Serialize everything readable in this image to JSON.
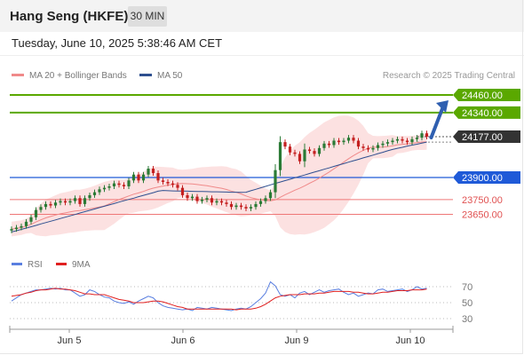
{
  "header": {
    "title": "Hang Seng (HKFE)",
    "timeframe": "30 MIN"
  },
  "datetime": "Tuesday, June 10, 2025 5:38:46 AM CET",
  "legend": {
    "ma20_label": "MA 20 + Bollinger Bands",
    "ma20_color": "#f08a8a",
    "ma50_label": "MA 50",
    "ma50_color": "#2e4f8f"
  },
  "copyright": "Research © 2025 Trading Central",
  "colors": {
    "green": "#5aa800",
    "blue": "#1f5ad8",
    "red": "#ef7777",
    "price_dark": "#333333",
    "arrow": "#2f5fb0",
    "up_candle": "#2a7a35",
    "down_candle": "#c42020"
  },
  "levels": {
    "resistance": [
      "24460.00",
      "24340.00"
    ],
    "last_price": "24177.00",
    "pivot": "23900.00",
    "support": [
      "23750.00",
      "23650.00"
    ]
  },
  "rsi_legend": {
    "rsi_label": "RSI",
    "rsi_color": "#5a7fe0",
    "ma_label": "9MA",
    "ma_color": "#e02020"
  },
  "rsi_ticks": [
    "70",
    "50",
    "30"
  ],
  "x_labels": [
    "Jun 5",
    "Jun 6",
    "Jun 9",
    "Jun 10"
  ],
  "chart_data": {
    "type": "candlestick",
    "instrument": "Hang Seng (HKFE)",
    "interval": "30 MIN",
    "x_labels": [
      "Jun 5",
      "Jun 6",
      "Jun 9",
      "Jun 10"
    ],
    "price_levels": [
      24460,
      24340,
      24177,
      23900,
      23750,
      23650
    ],
    "close": [
      23550,
      23560,
      23570,
      23600,
      23630,
      23680,
      23700,
      23720,
      23710,
      23730,
      23740,
      23730,
      23740,
      23760,
      23720,
      23760,
      23780,
      23800,
      23820,
      23830,
      23840,
      23860,
      23850,
      23840,
      23880,
      23920,
      23880,
      23920,
      23960,
      23930,
      23880,
      23870,
      23860,
      23850,
      23830,
      23780,
      23760,
      23770,
      23740,
      23750,
      23760,
      23730,
      23740,
      23730,
      23720,
      23700,
      23710,
      23700,
      23690,
      23700,
      23720,
      23740,
      23760,
      23800,
      23950,
      24140,
      24110,
      24070,
      24060,
      24010,
      24090,
      24080,
      24060,
      24100,
      24130,
      24120,
      24150,
      24140,
      24150,
      24170,
      24150,
      24110,
      24100,
      24090,
      24100,
      24120,
      24130,
      24140,
      24150,
      24160,
      24150,
      24140,
      24160,
      24170,
      24200,
      24177
    ],
    "ma50": [
      23530,
      23539,
      23548,
      23557,
      23566,
      23575,
      23585,
      23594,
      23603,
      23612,
      23622,
      23631,
      23640,
      23649,
      23659,
      23668,
      23677,
      23686,
      23696,
      23705,
      23714,
      23723,
      23733,
      23742,
      23751,
      23760,
      23770,
      23779,
      23788,
      23797,
      23807,
      23812,
      23810,
      23809,
      23808,
      23808,
      23807,
      23806,
      23805,
      23805,
      23804,
      23803,
      23803,
      23802,
      23801,
      23800,
      23800,
      23799,
      23800,
      23810,
      23820,
      23830,
      23840,
      23850,
      23860,
      23869,
      23879,
      23888,
      23898,
      23908,
      23917,
      23927,
      23937,
      23946,
      23956,
      23965,
      23975,
      23985,
      23994,
      24004,
      24014,
      24023,
      24033,
      24042,
      24052,
      24062,
      24071,
      24081,
      24090,
      24098,
      24105,
      24113,
      24120,
      24126,
      24133,
      24140
    ],
    "rsi": [
      52,
      56,
      60,
      62,
      64,
      66,
      66,
      67,
      68,
      67,
      68,
      66,
      66,
      62,
      58,
      60,
      66,
      64,
      60,
      57,
      56,
      52,
      50,
      49,
      51,
      48,
      52,
      55,
      58,
      56,
      50,
      46,
      44,
      43,
      42,
      41,
      42,
      40,
      44,
      43,
      42,
      44,
      43,
      42,
      41,
      40,
      42,
      43,
      42,
      45,
      50,
      55,
      62,
      76,
      71,
      60,
      58,
      60,
      56,
      62,
      64,
      60,
      63,
      66,
      63,
      65,
      66,
      67,
      63,
      60,
      62,
      58,
      60,
      62,
      61,
      66,
      67,
      64,
      65,
      66,
      67,
      64,
      66,
      70,
      67,
      68
    ],
    "rsi_ma9": [
      58,
      59,
      60,
      62,
      63,
      65,
      66,
      66,
      67,
      68,
      67,
      67,
      66,
      65,
      63,
      61,
      61,
      60,
      60,
      60,
      58,
      56,
      54,
      53,
      52,
      50,
      50,
      50,
      51,
      52,
      52,
      51,
      49,
      47,
      45,
      44,
      42,
      42,
      42,
      42,
      42,
      42,
      42,
      42,
      42,
      42,
      41,
      42,
      42,
      42,
      43,
      45,
      48,
      52,
      56,
      58,
      59,
      60,
      60,
      60,
      61,
      61,
      61,
      62,
      62,
      63,
      64,
      64,
      64,
      64,
      63,
      63,
      62,
      61,
      61,
      62,
      63,
      63,
      64,
      65,
      65,
      65,
      66,
      66,
      66,
      67
    ]
  }
}
